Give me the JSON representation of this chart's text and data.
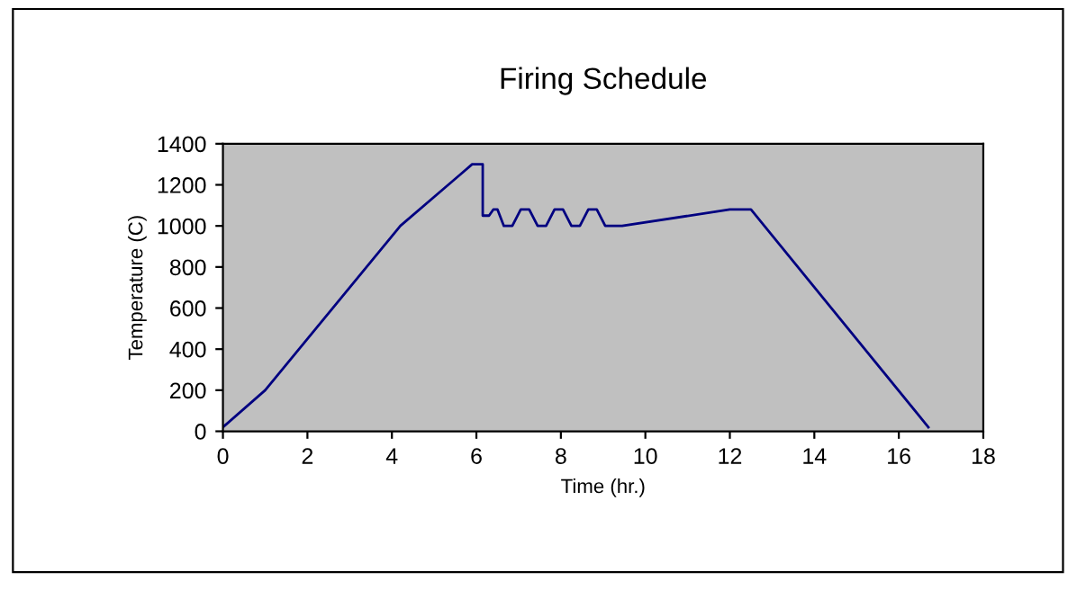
{
  "chart_data": {
    "type": "line",
    "title": "Firing Schedule",
    "xlabel": "Time (hr.)",
    "ylabel": "Temperature (C)",
    "x": [
      0,
      1,
      4.2,
      5.9,
      6.15,
      6.15,
      6.3,
      6.4,
      6.5,
      6.65,
      6.75,
      6.85,
      7.05,
      7.15,
      7.25,
      7.45,
      7.55,
      7.65,
      7.85,
      7.95,
      8.05,
      8.25,
      8.35,
      8.45,
      8.65,
      8.75,
      8.85,
      9.05,
      9.15,
      9.25,
      9.45,
      12.0,
      12.5,
      16.7
    ],
    "series": [
      {
        "color": "#000080",
        "values": [
          20,
          200,
          1000,
          1300,
          1300,
          1050,
          1050,
          1080,
          1080,
          1000,
          1000,
          1000,
          1080,
          1080,
          1080,
          1000,
          1000,
          1000,
          1080,
          1080,
          1080,
          1000,
          1000,
          1000,
          1080,
          1080,
          1080,
          1000,
          1000,
          1000,
          1000,
          1080,
          1080,
          20
        ]
      }
    ],
    "xlim": [
      0,
      18
    ],
    "xticks": [
      0,
      2,
      4,
      6,
      8,
      10,
      12,
      14,
      16,
      18
    ],
    "ylim": [
      0,
      1400
    ],
    "yticks": [
      0,
      200,
      400,
      600,
      800,
      1000,
      1200,
      1400
    ],
    "grid": false,
    "legend": false,
    "marker": "none",
    "line_style": "solid"
  }
}
